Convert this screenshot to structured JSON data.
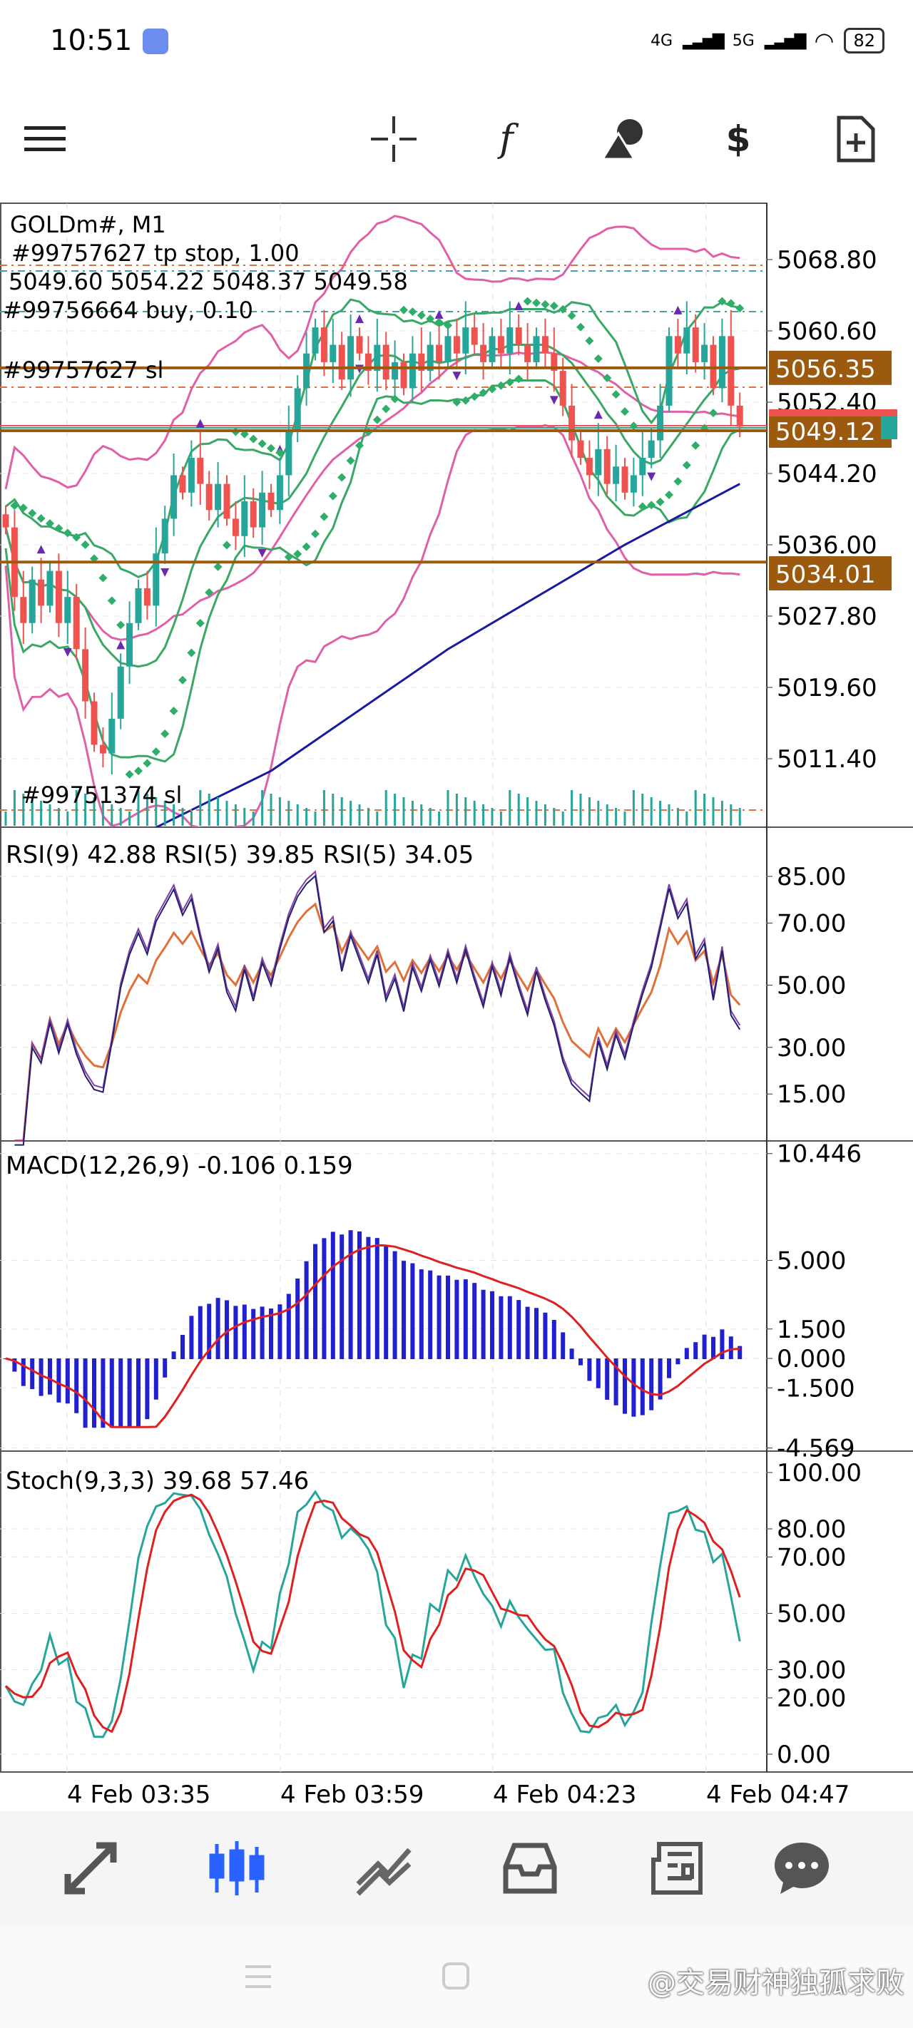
{
  "status_bar": {
    "time": "10:51",
    "net1": "4G",
    "net2": "5G",
    "battery": "82"
  },
  "toolbar": {
    "items": [
      "menu-icon",
      "crosshair-icon",
      "indicators-icon",
      "objects-icon",
      "trade-icon",
      "new-order-icon"
    ],
    "indicators_label": "f"
  },
  "main_chart": {
    "symbol": "GOLDm#, M1",
    "ohlc_text": "5049.60 5054.22 5048.37 5049.58",
    "order_tp": "#99757627 tp stop, 1.00",
    "order_buy": "#99756664 buy, 0.10",
    "order_sl": "#99757627 sl",
    "order_sl2": "#99751374 sl",
    "price_ticks": [
      "5068.80",
      "5060.60",
      "5052.40",
      "5044.20",
      "5036.00",
      "5027.80",
      "5019.60",
      "5011.40"
    ],
    "price_lines": [
      {
        "label": "5056.35",
        "value": 5056.35
      },
      {
        "label": "5049.12",
        "value": 5049.12
      },
      {
        "label": "5034.01",
        "value": 5034.01
      }
    ],
    "colors": {
      "bull": "#26a69a",
      "bear": "#ef5350",
      "level": "#9c5a0e",
      "bb_outer": "#e060a8",
      "bb_inner": "#3aa865",
      "ma": "#1a1aa0",
      "sar": "#2fae6a"
    }
  },
  "rsi": {
    "header": "RSI(9) 42.88 RSI(5) 39.85 RSI(5) 34.05",
    "ticks": [
      "85.00",
      "70.00",
      "50.00",
      "30.00",
      "15.00"
    ]
  },
  "macd": {
    "header": "MACD(12,26,9) -0.106 0.159",
    "ticks": [
      "10.446",
      "5.000",
      "1.500",
      "0.000",
      "-1.500",
      "-4.569"
    ]
  },
  "stoch": {
    "header": "Stoch(9,3,3) 39.68 57.46",
    "ticks": [
      "100.00",
      "80.00",
      "70.00",
      "50.00",
      "30.00",
      "20.00",
      "0.00"
    ]
  },
  "time_axis": [
    "4 Feb 03:35",
    "4 Feb 03:59",
    "4 Feb 04:23",
    "4 Feb 04:47"
  ],
  "nav": {
    "items": [
      "trade-icon",
      "quotes-icon",
      "chart-icon",
      "history-icon",
      "news-icon",
      "messages-icon"
    ],
    "active": 1
  },
  "watermark": "@交易财神独孤求败",
  "chart_data": {
    "type": "candlestick",
    "symbol": "GOLDm#",
    "timeframe": "M1",
    "close": [
      5038,
      5030,
      5027,
      5032,
      5029,
      5033,
      5027,
      5030,
      5024,
      5018,
      5013,
      5012,
      5016,
      5022,
      5027,
      5031,
      5029,
      5035,
      5039,
      5044,
      5042,
      5046,
      5043,
      5040,
      5043,
      5039,
      5037,
      5041,
      5038,
      5042,
      5040,
      5044,
      5049,
      5054,
      5058,
      5061,
      5057,
      5059,
      5055,
      5060,
      5058,
      5056,
      5059,
      5055,
      5057,
      5054,
      5058,
      5056,
      5059,
      5057,
      5060,
      5058,
      5061,
      5059,
      5057,
      5060,
      5058,
      5061,
      5059,
      5057,
      5060,
      5058,
      5056,
      5052,
      5048,
      5046,
      5044,
      5047,
      5043,
      5045,
      5042,
      5044,
      5046,
      5048,
      5052,
      5060,
      5058,
      5061,
      5057,
      5059,
      5054,
      5060,
      5052,
      5049.58
    ],
    "long_ma": [
      [
        0,
        4996
      ],
      [
        10,
        5000
      ],
      [
        30,
        5010
      ],
      [
        50,
        5024
      ],
      [
        70,
        5036
      ],
      [
        83,
        5043
      ]
    ],
    "ylim": [
      5000,
      5072
    ]
  }
}
